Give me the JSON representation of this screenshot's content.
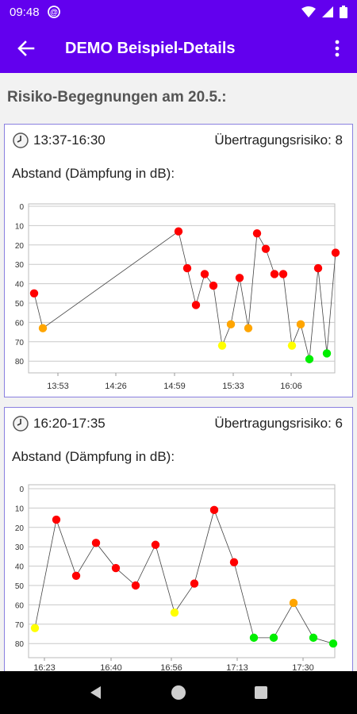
{
  "status_bar": {
    "time": "09:48"
  },
  "app_bar": {
    "title": "DEMO Beispiel-Details"
  },
  "section_title": "Risiko-Begegnungen am 20.5.:",
  "colors": {
    "accent": "#6200ee",
    "red": "#ff0000",
    "orange": "#ffa500",
    "yellow": "#ffff00",
    "green": "#00ee00"
  },
  "cards": [
    {
      "time_range": "13:37-16:30",
      "risk_label": "Übertragungsrisiko: 8",
      "subtitle": "Abstand (Dämpfung in dB):",
      "chart_data": {
        "type": "scatter",
        "y_ticks": [
          "0",
          "10",
          "20",
          "30",
          "40",
          "50",
          "60",
          "70",
          "80"
        ],
        "ylim": [
          0,
          85
        ],
        "x_ticks": [
          "13:53",
          "14:26",
          "14:59",
          "15:33",
          "16:06"
        ],
        "points": [
          {
            "y": 45,
            "c": "red"
          },
          {
            "y": 63,
            "c": "orange"
          },
          {
            "y": 13,
            "c": "red"
          },
          {
            "y": 32,
            "c": "red"
          },
          {
            "y": 51,
            "c": "red"
          },
          {
            "y": 35,
            "c": "red"
          },
          {
            "y": 41,
            "c": "red"
          },
          {
            "y": 72,
            "c": "yellow"
          },
          {
            "y": 61,
            "c": "orange"
          },
          {
            "y": 37,
            "c": "red"
          },
          {
            "y": 63,
            "c": "orange"
          },
          {
            "y": 14,
            "c": "red"
          },
          {
            "y": 22,
            "c": "red"
          },
          {
            "y": 35,
            "c": "red"
          },
          {
            "y": 35,
            "c": "red"
          },
          {
            "y": 72,
            "c": "yellow"
          },
          {
            "y": 61,
            "c": "orange"
          },
          {
            "y": 79,
            "c": "green"
          },
          {
            "y": 32,
            "c": "red"
          },
          {
            "y": 76,
            "c": "green"
          },
          {
            "y": 24,
            "c": "red"
          }
        ]
      }
    },
    {
      "time_range": "16:20-17:35",
      "risk_label": "Übertragungsrisiko: 6",
      "subtitle": "Abstand (Dämpfung in dB):",
      "chart_data": {
        "type": "scatter",
        "y_ticks": [
          "0",
          "10",
          "20",
          "30",
          "40",
          "50",
          "60",
          "70",
          "80"
        ],
        "ylim": [
          0,
          85
        ],
        "x_ticks": [
          "16:23",
          "16:40",
          "16:56",
          "17:13",
          "17:30"
        ],
        "points": [
          {
            "y": 72,
            "c": "yellow"
          },
          {
            "y": 16,
            "c": "red"
          },
          {
            "y": 45,
            "c": "red"
          },
          {
            "y": 28,
            "c": "red"
          },
          {
            "y": 41,
            "c": "red"
          },
          {
            "y": 50,
            "c": "red"
          },
          {
            "y": 29,
            "c": "red"
          },
          {
            "y": 64,
            "c": "yellow"
          },
          {
            "y": 49,
            "c": "red"
          },
          {
            "y": 11,
            "c": "red"
          },
          {
            "y": 38,
            "c": "red"
          },
          {
            "y": 77,
            "c": "green"
          },
          {
            "y": 77,
            "c": "green"
          },
          {
            "y": 59,
            "c": "orange"
          },
          {
            "y": 77,
            "c": "green"
          },
          {
            "y": 80,
            "c": "green"
          }
        ]
      }
    }
  ]
}
